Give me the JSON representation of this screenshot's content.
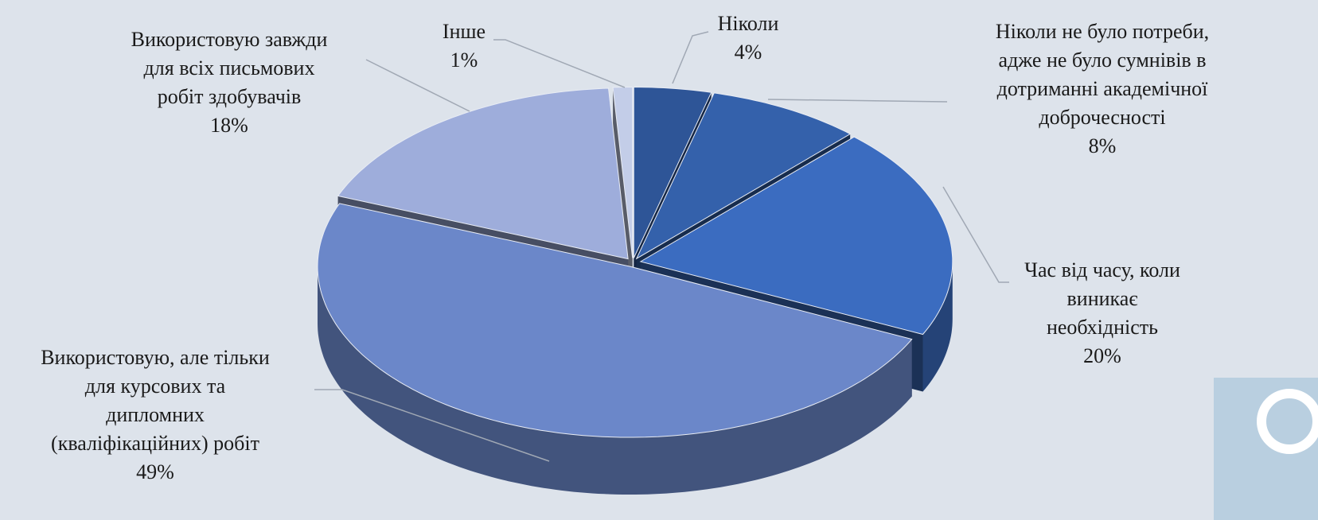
{
  "chart_data": {
    "type": "pie",
    "categories": [
      "Ніколи",
      "Ніколи не було потреби,\nадже не було сумнівів в\nдотриманні академічної\nдоброчесності",
      "Час від часу, коли\nвиникає\nнеобхідність",
      "Використовую, але тільки\nдля курсових та\nдипломних\n(кваліфікаційних) робіт",
      "Використовую завжди\nдля всіх письмових\nробіт здобувачів",
      "Інше"
    ],
    "values": [
      4,
      8,
      20,
      49,
      18,
      1
    ],
    "value_labels": [
      "4%",
      "8%",
      "20%",
      "49%",
      "18%",
      "1%"
    ],
    "colors": [
      "#2e5597",
      "#3461ab",
      "#3b6cc0",
      "#6b87c9",
      "#9eaddb",
      "#c3cde8"
    ]
  }
}
